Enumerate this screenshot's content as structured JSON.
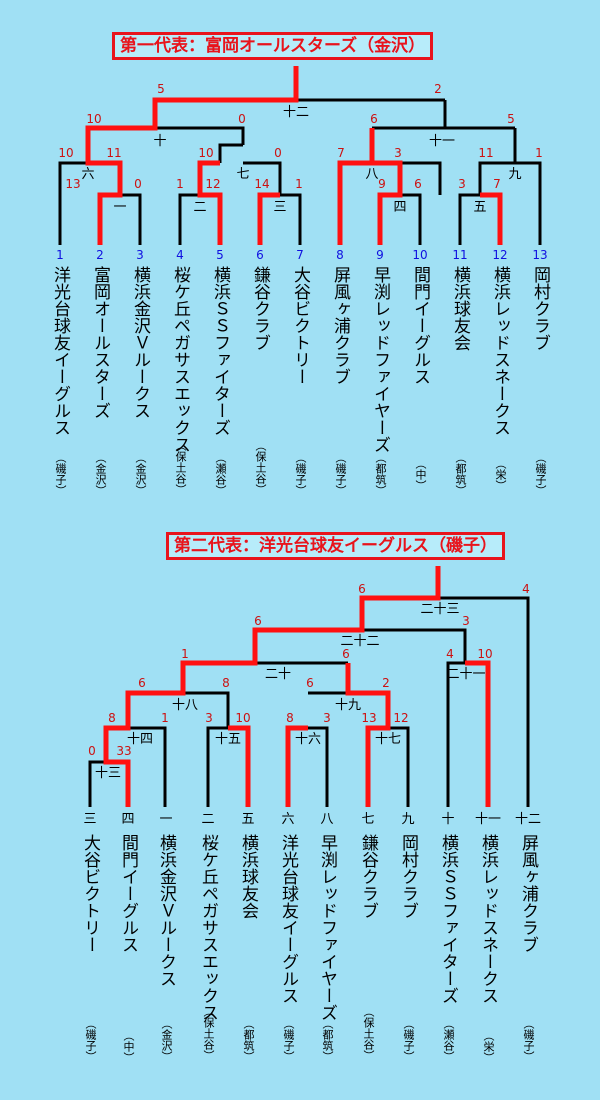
{
  "bracket1": {
    "title": "第一代表：富岡オールスターズ（金沢）",
    "seeds": [
      "1",
      "2",
      "3",
      "4",
      "5",
      "6",
      "7",
      "8",
      "9",
      "10",
      "11",
      "12",
      "13"
    ],
    "teams": [
      "洋光台球友イーグルス",
      "富岡オールスターズ",
      "横浜金沢Ｖルークス",
      "桜ケ丘ペガサスエックス",
      "横浜ＳＳファイターズ",
      "鎌谷クラブ",
      "大谷ビクトリー",
      "屏風ヶ浦クラブ",
      "早渕レッドファイヤーズ",
      "間門イーグルス",
      "横浜球友会",
      "横浜レッドスネークス",
      "岡村クラブ"
    ],
    "prefs": [
      "（磯子）",
      "（金沢）",
      "（金沢）",
      "（保土谷）",
      "（瀬谷）",
      "（保土谷）",
      "（磯子）",
      "（磯子）",
      "（都筑）",
      "（中）",
      "（都筑）",
      "（栄）",
      "（磯子）"
    ],
    "rounds": [
      "一",
      "二",
      "三",
      "四",
      "五",
      "六",
      "七",
      "八",
      "九",
      "十",
      "十一",
      "十二"
    ],
    "scores": [
      "13",
      "0",
      "1",
      "12",
      "14",
      "1",
      "9",
      "6",
      "3",
      "7",
      "10",
      "11",
      "10",
      "0",
      "7",
      "3",
      "11",
      "1",
      "10",
      "0",
      "6",
      "5",
      "5",
      "2"
    ]
  },
  "bracket2": {
    "title": "第二代表：洋光台球友イーグルス（磯子）",
    "seeds": [
      "三",
      "四",
      "一",
      "二",
      "五",
      "六",
      "八",
      "七",
      "九",
      "十",
      "十一",
      "十二"
    ],
    "teams": [
      "大谷ビクトリー",
      "間門イーグルス",
      "横浜金沢Ｖルークス",
      "桜ケ丘ペガサスエックス",
      "横浜球友会",
      "洋光台球友イーグルス",
      "早渕レッドファイヤーズ",
      "鎌谷クラブ",
      "岡村クラブ",
      "横浜ＳＳファイターズ",
      "横浜レッドスネークス",
      "屏風ヶ浦クラブ"
    ],
    "prefs": [
      "（磯子）",
      "（中）",
      "（金沢）",
      "（保土谷）",
      "（都筑）",
      "（磯子）",
      "（都筑）",
      "（保土谷）",
      "（磯子）",
      "（瀬谷）",
      "（栄）",
      "（磯子）"
    ],
    "rounds": [
      "十三",
      "十四",
      "十五",
      "十六",
      "十七",
      "十八",
      "十九",
      "二十",
      "二十一",
      "二十二",
      "二十三"
    ],
    "scores": [
      "0",
      "33",
      "8",
      "1",
      "3",
      "10",
      "8",
      "3",
      "13",
      "12",
      "6",
      "8",
      "6",
      "2",
      "1",
      "6",
      "4",
      "10",
      "6",
      "3",
      "6",
      "4"
    ]
  }
}
